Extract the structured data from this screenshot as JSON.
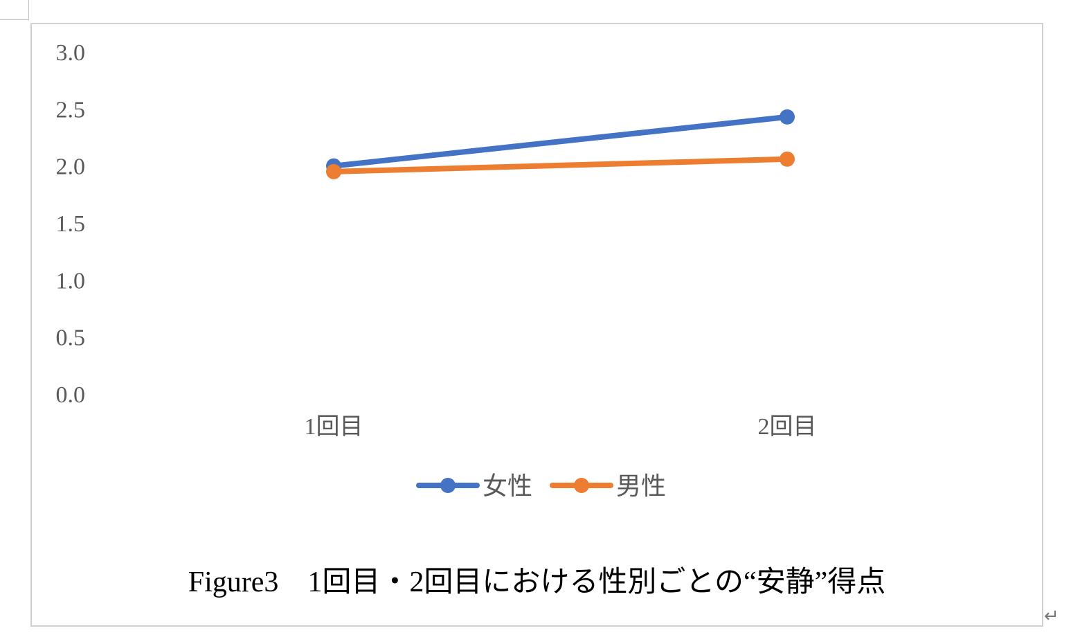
{
  "chart_data": {
    "type": "line",
    "categories": [
      "1回目",
      "2回目"
    ],
    "series": [
      {
        "name": "女性",
        "values": [
          2.0,
          2.43
        ],
        "color": "#4472C4"
      },
      {
        "name": "男性",
        "values": [
          1.95,
          2.06
        ],
        "color": "#ED7D31"
      }
    ],
    "y_ticks": [
      "3.0",
      "2.5",
      "2.0",
      "1.5",
      "1.0",
      "0.5",
      "0.0"
    ],
    "ylim": [
      0,
      3
    ],
    "grid": false,
    "legend_position": "bottom",
    "title": "",
    "xlabel": "",
    "ylabel": ""
  },
  "caption": "Figure3　1回目・2回目における性別ごとの“安静”得点",
  "return_mark": "↵"
}
